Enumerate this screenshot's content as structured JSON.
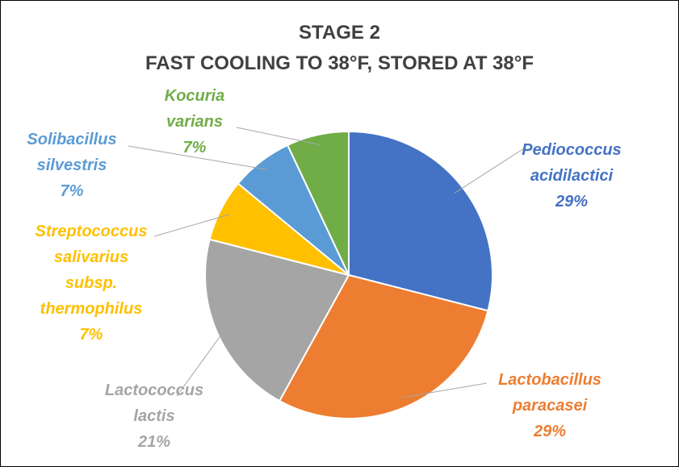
{
  "chart_data": {
    "type": "pie",
    "title": "STAGE 2",
    "subtitle": "FAST COOLING TO 38°F, STORED AT 38°F",
    "categories": [
      "Pediococcus acidilactici",
      "Lactobacillus paracasei",
      "Lactococcus lactis",
      "Streptococcus salivarius subsp. thermophilus",
      "Solibacillus silvestris",
      "Kocuria varians"
    ],
    "values": [
      29,
      29,
      21,
      7,
      7,
      7
    ],
    "value_labels": [
      "29%",
      "29%",
      "21%",
      "7%",
      "7%",
      "7%"
    ],
    "colors": [
      "#4472C4",
      "#ED7D31",
      "#A5A5A5",
      "#FFC000",
      "#5B9BD5",
      "#70AD47"
    ]
  }
}
